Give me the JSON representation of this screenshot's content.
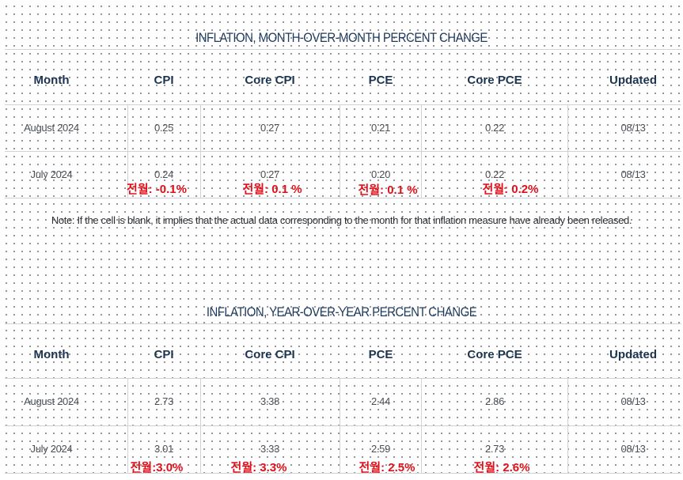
{
  "mom": {
    "title": "INFLATION, MONTH-OVER-MONTH PERCENT CHANGE",
    "headers": [
      "Month",
      "CPI",
      "Core CPI",
      "PCE",
      "Core PCE",
      "Updated"
    ],
    "rows": [
      [
        "August 2024",
        "0.25",
        "0.27",
        "0.21",
        "0.22",
        "08/13"
      ],
      [
        "July 2024",
        "0.24",
        "0.27",
        "0.20",
        "0.22",
        "08/13"
      ]
    ],
    "annotations": [
      "전월: -0.1%",
      "전월: 0.1 %",
      "전월: 0.1 %",
      "전월: 0.2%"
    ]
  },
  "note": "Note: If the cell is blank, it implies that the actual data corresponding to the month for that inflation measure have already been released.",
  "yoy": {
    "title": "INFLATION, YEAR-OVER-YEAR PERCENT CHANGE",
    "headers": [
      "Month",
      "CPI",
      "Core CPI",
      "PCE",
      "Core PCE",
      "Updated"
    ],
    "rows": [
      [
        "August 2024",
        "2.73",
        "3.38",
        "2.44",
        "2.86",
        "08/13"
      ],
      [
        "July 2024",
        "3.01",
        "3.33",
        "2.59",
        "2.73",
        "08/13"
      ]
    ],
    "annotations": [
      "전월:3.0%",
      "전월: 3.3%",
      "전월: 2.5%",
      "전월: 2.6%"
    ]
  },
  "colors": {
    "title": "#1d3a5c",
    "header": "#1b3450",
    "annotation": "#e0101a",
    "grid": "#cfd3d8"
  }
}
